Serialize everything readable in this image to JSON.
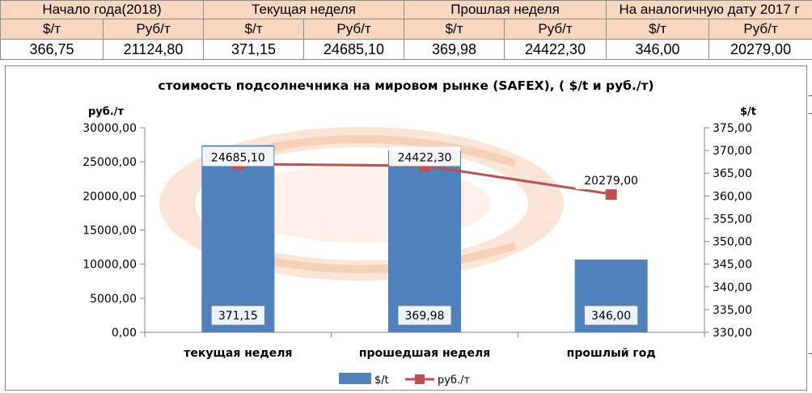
{
  "table": {
    "groups": [
      "Начало года(2018)",
      "Текущая неделя",
      "Прошлая неделя",
      "На аналогичную дату 2017 г"
    ],
    "units": [
      "$/т",
      "Руб/т",
      "$/т",
      "Руб/т",
      "$/т",
      "Руб/т",
      "$/т",
      "Руб/т"
    ],
    "values": [
      "366,75",
      "21124,80",
      "371,15",
      "24685,10",
      "369,98",
      "24422,30",
      "346,00",
      "20279,00"
    ]
  },
  "chart_data": {
    "type": "bar",
    "title": "стоимость подсолнечника на мировом рынке (SAFEX), ( $/t и руб./т)",
    "ylabel_left": "руб./т",
    "ylabel_right": "$/t",
    "categories": [
      "текущая неделя",
      "прошедшая неделя",
      "прошлый год"
    ],
    "left_axis": {
      "min": 0,
      "max": 30000,
      "step": 5000,
      "ticks": [
        "0,00",
        "5000,00",
        "10000,00",
        "15000,00",
        "20000,00",
        "25000,00",
        "30000,00"
      ]
    },
    "right_axis": {
      "min": 330,
      "max": 375,
      "step": 5,
      "ticks": [
        "330,00",
        "335,00",
        "340,00",
        "345,00",
        "350,00",
        "355,00",
        "360,00",
        "365,00",
        "370,00",
        "375,00"
      ]
    },
    "series": [
      {
        "name": "$/t",
        "kind": "bar",
        "axis": "right",
        "color": "#4f81bd",
        "values": [
          371.15,
          369.98,
          346.0
        ],
        "labels": [
          "371,15",
          "369,98",
          "346,00"
        ]
      },
      {
        "name": "руб./т",
        "kind": "line",
        "axis": "left",
        "color": "#c0504d",
        "values": [
          24685.1,
          24422.3,
          20279.0
        ],
        "labels": [
          "24685,10",
          "24422,30",
          "20279,00"
        ]
      }
    ],
    "legend": "bottom",
    "grid": false
  }
}
